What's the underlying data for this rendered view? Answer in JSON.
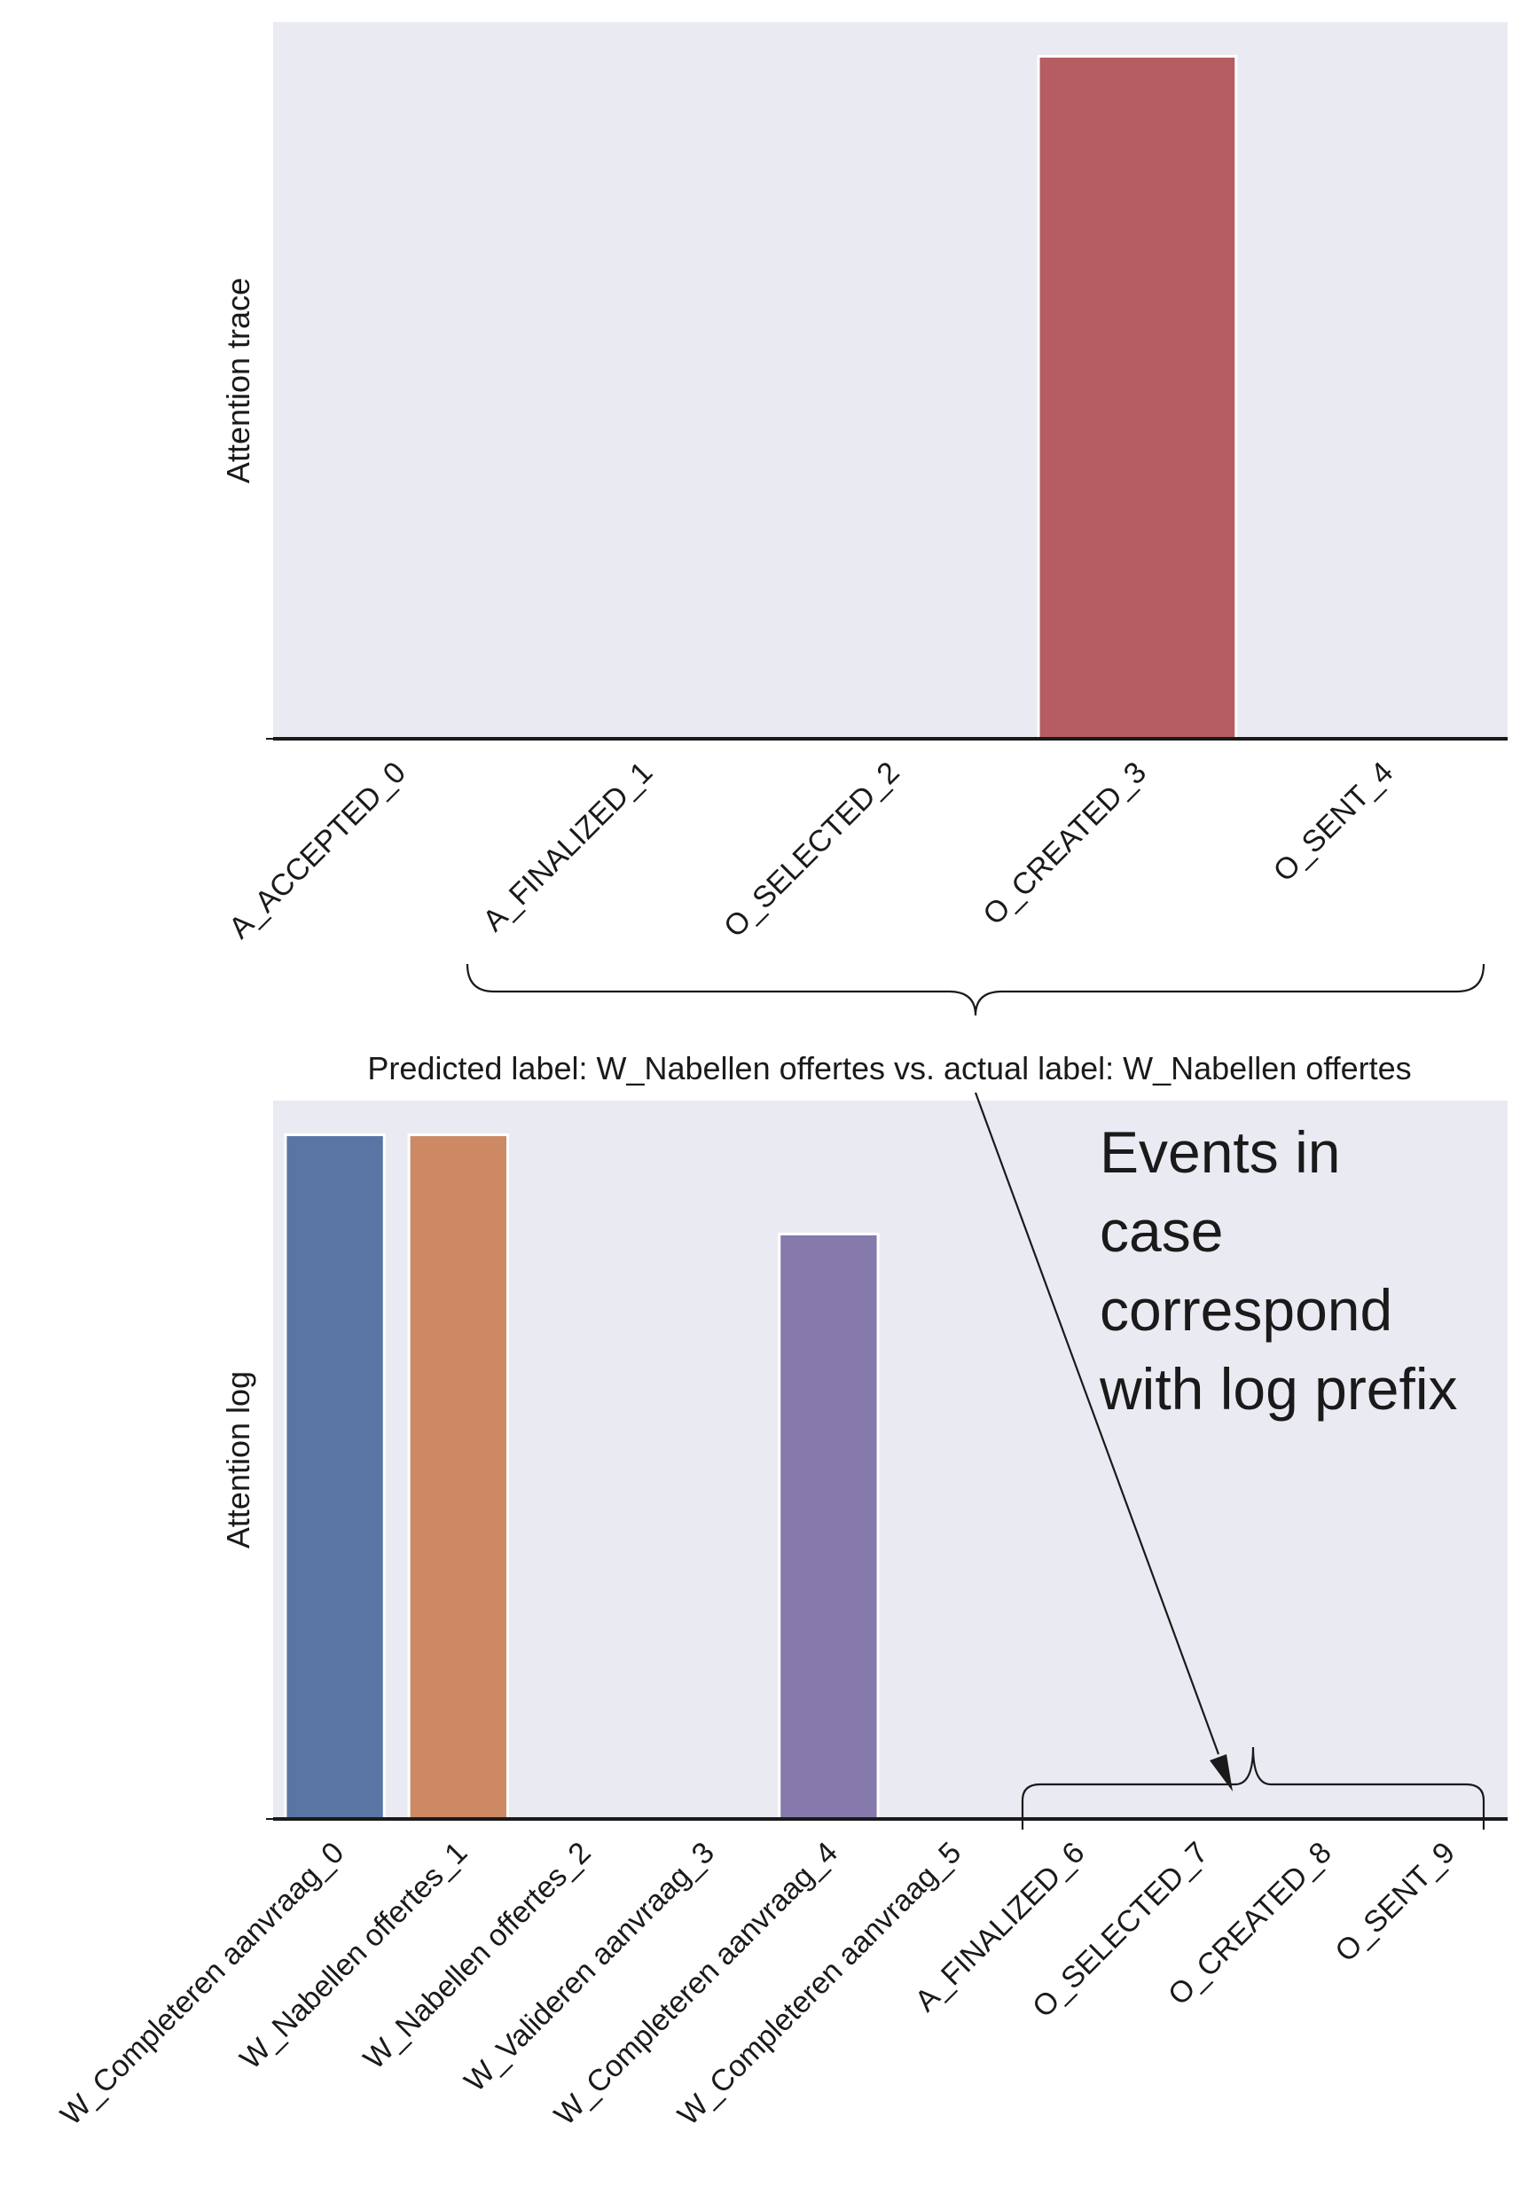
{
  "chart_data": [
    {
      "type": "bar",
      "title": "",
      "xlabel": "",
      "ylabel": "Attention trace",
      "ylim": [
        0,
        1.05
      ],
      "grid": false,
      "categories": [
        "A_ACCEPTED_0",
        "A_FINALIZED_1",
        "O_SELECTED_2",
        "O_CREATED_3",
        "O_SENT_4"
      ],
      "values": [
        0,
        0,
        0,
        1.0,
        0
      ],
      "colors": [
        "#5975a4",
        "#cc8963",
        "#5f9e6e",
        "#b55d60",
        "#857aab"
      ]
    },
    {
      "type": "bar",
      "title": "Predicted label: W_Nabellen offertes vs. actual label: W_Nabellen offertes",
      "xlabel": "",
      "ylabel": "Attention log",
      "ylim": [
        0,
        1.05
      ],
      "grid": false,
      "categories": [
        "W_Completeren aanvraag_0",
        "W_Nabellen offertes_1",
        "W_Nabellen offertes_2",
        "W_Valideren aanvraag_3",
        "W_Completeren aanvraag_4",
        "W_Completeren aanvraag_5",
        "A_FINALIZED_6",
        "O_SELECTED_7",
        "O_CREATED_8",
        "O_SENT_9"
      ],
      "values": [
        1.0,
        1.0,
        0,
        0,
        0.855,
        0,
        0,
        0,
        0,
        0
      ],
      "colors": [
        "#5975a4",
        "#cc8963",
        "#5f9e6e",
        "#b55d60",
        "#857aab",
        "#8d7866",
        "#d095bf",
        "#8c8c8c",
        "#c1b37f",
        "#77b6c7"
      ]
    }
  ],
  "annotation": {
    "text": [
      "Events in",
      "case",
      "correspond",
      "with log prefix"
    ]
  },
  "style": {
    "panel_bg": "#eaeaf2",
    "bar_edge": "#ffffff",
    "axis_color": "#1a1a1a"
  }
}
